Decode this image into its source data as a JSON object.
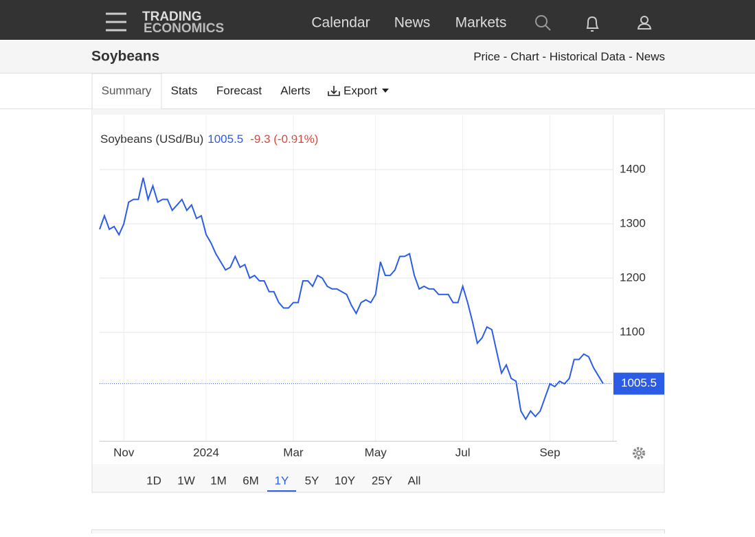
{
  "nav": {
    "logo": [
      "TRADING",
      "ECONOMICS"
    ],
    "links": [
      "Calendar",
      "News",
      "Markets"
    ]
  },
  "header": {
    "title": "Soybeans",
    "links": [
      "Price",
      "Chart",
      "Historical Data",
      "News"
    ],
    "separator": "-"
  },
  "tabs": [
    "Summary",
    "Stats",
    "Forecast",
    "Alerts",
    "Export"
  ],
  "chart_data": {
    "type": "line",
    "title": "Soybeans (USd/Bu)",
    "change": "-9.3 (-0.91%)",
    "categories": [
      null,
      null,
      null,
      null,
      null,
      "Nov",
      null,
      null,
      null,
      null,
      null,
      null,
      null,
      null,
      null,
      null,
      null,
      null,
      null,
      null,
      null,
      null,
      "2024",
      null,
      null,
      null,
      null,
      null,
      null,
      null,
      null,
      null,
      null,
      null,
      null,
      null,
      null,
      null,
      null,
      null,
      "Mar",
      null,
      null,
      null,
      null,
      null,
      null,
      null,
      null,
      null,
      null,
      null,
      null,
      null,
      null,
      null,
      null,
      "May",
      null,
      null,
      null,
      null,
      null,
      null,
      null,
      null,
      null,
      null,
      null,
      null,
      null,
      null,
      null,
      null,
      null,
      "Jul",
      null,
      null,
      null,
      null,
      null,
      null,
      null,
      null,
      null,
      null,
      null,
      null,
      null,
      null,
      null,
      null,
      null,
      "Sep",
      null,
      null,
      null,
      null,
      null,
      null,
      null,
      null,
      null,
      null,
      null
    ],
    "values": [
      1290,
      1315,
      1290,
      1295,
      1280,
      1300,
      1340,
      1345,
      1345,
      1385,
      1345,
      1370,
      1340,
      1345,
      1345,
      1325,
      1335,
      1345,
      1325,
      1335,
      1310,
      1315,
      1280,
      1265,
      1245,
      1230,
      1215,
      1220,
      1240,
      1220,
      1225,
      1200,
      1205,
      1195,
      1195,
      1175,
      1175,
      1155,
      1145,
      1145,
      1155,
      1155,
      1195,
      1195,
      1185,
      1205,
      1200,
      1185,
      1180,
      1180,
      1175,
      1170,
      1150,
      1135,
      1155,
      1160,
      1155,
      1170,
      1230,
      1205,
      1205,
      1215,
      1240,
      1240,
      1245,
      1205,
      1180,
      1185,
      1180,
      1180,
      1170,
      1170,
      1170,
      1155,
      1155,
      1185,
      1155,
      1120,
      1080,
      1090,
      1110,
      1105,
      1065,
      1025,
      1040,
      1015,
      1010,
      955,
      940,
      955,
      945,
      955,
      980,
      1005,
      1000,
      1010,
      1005,
      1015,
      1050,
      1050,
      1060,
      1055,
      1035,
      1020,
      1005.5
    ],
    "color": "#2b5ce6",
    "ylim": [
      900,
      1500
    ],
    "yticks": [
      1100,
      1200,
      1300,
      1400
    ],
    "grid": true
  },
  "ranges": [
    "1D",
    "1W",
    "1M",
    "6M",
    "1Y",
    "5Y",
    "10Y",
    "25Y",
    "All"
  ],
  "active_range": 4
}
